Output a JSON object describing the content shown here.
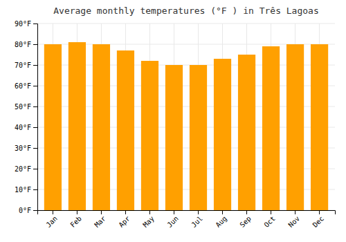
{
  "chart_data": {
    "type": "bar",
    "title": "Average monthly temperatures (°F ) in Três Lagoas",
    "categories": [
      "Jan",
      "Feb",
      "Mar",
      "Apr",
      "May",
      "Jun",
      "Jul",
      "Aug",
      "Sep",
      "Oct",
      "Nov",
      "Dec"
    ],
    "values": [
      80,
      81,
      80,
      77,
      72,
      70,
      70,
      73,
      75,
      79,
      80,
      80
    ],
    "color": "#FFA000",
    "ylim": [
      0,
      90
    ],
    "yticks": [
      {
        "value": 0,
        "label": "0°F"
      },
      {
        "value": 10,
        "label": "10°F"
      },
      {
        "value": 20,
        "label": "20°F"
      },
      {
        "value": 30,
        "label": "30°F"
      },
      {
        "value": 40,
        "label": "40°F"
      },
      {
        "value": 50,
        "label": "50°F"
      },
      {
        "value": 60,
        "label": "60°F"
      },
      {
        "value": 70,
        "label": "70°F"
      },
      {
        "value": 80,
        "label": "80°F"
      },
      {
        "value": 90,
        "label": "90°F"
      }
    ],
    "grid": true
  }
}
